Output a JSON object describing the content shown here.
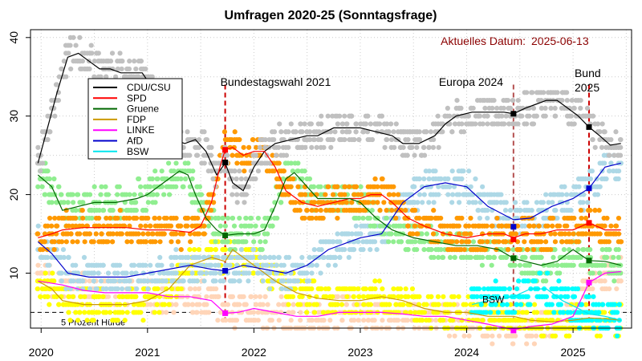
{
  "chart_data": {
    "type": "line",
    "title": "Umfragen 2020-25 (Sonntagsfrage)",
    "current_date_label": "Aktuelles Datum:",
    "current_date_value": "2025-06-13",
    "xlim": [
      2019.9,
      2025.55
    ],
    "ylim": [
      3,
      41
    ],
    "x_ticks": [
      2020,
      2021,
      2022,
      2023,
      2024,
      2025
    ],
    "x_tick_labels": [
      "2020",
      "2021",
      "2022",
      "2023",
      "2024",
      "2025"
    ],
    "y_ticks": [
      10,
      20,
      30,
      40
    ],
    "y_tick_labels": [
      "10",
      "20",
      "30",
      "40"
    ],
    "grid": true,
    "legend_position": "top-left",
    "threshold": {
      "y": 5,
      "label": "5 Prozent Hürde"
    },
    "events": [
      {
        "x": 2021.73,
        "label": "Bundestagswahl 2021",
        "color": "#cc0000",
        "lines": [
          "Bundestagswahl 2021"
        ]
      },
      {
        "x": 2024.44,
        "label": "Europa 2024",
        "color": "#b45050",
        "lines": [
          "Europa 2024"
        ]
      },
      {
        "x": 2025.15,
        "label": "Bund 2025",
        "color": "#cc0000",
        "lines": [
          "Bund",
          "2025"
        ]
      }
    ],
    "annotations": [
      {
        "x": 2024.25,
        "y": 6.2,
        "text": "BSW"
      }
    ],
    "series": [
      {
        "name": "CDU/CSU",
        "line_color": "#000000",
        "point_color": "#c0c0c0",
        "points": [
          [
            2019.97,
            24
          ],
          [
            2020.05,
            28
          ],
          [
            2020.15,
            33
          ],
          [
            2020.25,
            37.5
          ],
          [
            2020.35,
            38
          ],
          [
            2020.45,
            37
          ],
          [
            2020.55,
            36
          ],
          [
            2020.65,
            36
          ],
          [
            2020.75,
            35.5
          ],
          [
            2020.85,
            35.5
          ],
          [
            2020.95,
            35.5
          ],
          [
            2021.05,
            33.5
          ],
          [
            2021.15,
            30
          ],
          [
            2021.25,
            27
          ],
          [
            2021.35,
            26.5
          ],
          [
            2021.45,
            27
          ],
          [
            2021.55,
            25.5
          ],
          [
            2021.65,
            22.5
          ],
          [
            2021.73,
            24
          ],
          [
            2021.8,
            21.5
          ],
          [
            2021.9,
            20.5
          ],
          [
            2022.0,
            23.5
          ],
          [
            2022.1,
            25.5
          ],
          [
            2022.2,
            26.5
          ],
          [
            2022.35,
            27
          ],
          [
            2022.5,
            27.5
          ],
          [
            2022.6,
            27.5
          ],
          [
            2022.75,
            28.5
          ],
          [
            2022.9,
            28.5
          ],
          [
            2023.0,
            28.5
          ],
          [
            2023.15,
            28
          ],
          [
            2023.3,
            27.5
          ],
          [
            2023.4,
            26.5
          ],
          [
            2023.55,
            26.5
          ],
          [
            2023.7,
            27.5
          ],
          [
            2023.8,
            29
          ],
          [
            2023.9,
            30
          ],
          [
            2024.05,
            30.5
          ],
          [
            2024.2,
            30.5
          ],
          [
            2024.35,
            30.5
          ],
          [
            2024.44,
            30.3
          ],
          [
            2024.55,
            31
          ],
          [
            2024.65,
            31.5
          ],
          [
            2024.75,
            32
          ],
          [
            2024.85,
            32
          ],
          [
            2024.95,
            31
          ],
          [
            2025.05,
            30
          ],
          [
            2025.15,
            28.6
          ],
          [
            2025.25,
            27.5
          ],
          [
            2025.35,
            26.3
          ],
          [
            2025.45,
            26.5
          ]
        ],
        "markers": [
          [
            2021.73,
            24.1
          ],
          [
            2024.44,
            30.3
          ],
          [
            2025.15,
            28.6
          ]
        ]
      },
      {
        "name": "SPD",
        "line_color": "#ff0000",
        "point_color": "#ff9900",
        "points": [
          [
            2019.97,
            14.5
          ],
          [
            2020.1,
            15
          ],
          [
            2020.2,
            15.5
          ],
          [
            2020.4,
            15.8
          ],
          [
            2020.6,
            15.8
          ],
          [
            2020.8,
            15.8
          ],
          [
            2021.0,
            15.5
          ],
          [
            2021.2,
            15.5
          ],
          [
            2021.4,
            15.2
          ],
          [
            2021.5,
            16
          ],
          [
            2021.6,
            19
          ],
          [
            2021.68,
            23.5
          ],
          [
            2021.73,
            25.7
          ],
          [
            2021.8,
            26
          ],
          [
            2021.9,
            25
          ],
          [
            2022.0,
            25.5
          ],
          [
            2022.1,
            25.5
          ],
          [
            2022.2,
            23.5
          ],
          [
            2022.3,
            20.5
          ],
          [
            2022.45,
            19
          ],
          [
            2022.6,
            18.5
          ],
          [
            2022.75,
            19
          ],
          [
            2022.9,
            19.5
          ],
          [
            2023.0,
            19.5
          ],
          [
            2023.1,
            20
          ],
          [
            2023.2,
            20
          ],
          [
            2023.3,
            19
          ],
          [
            2023.45,
            17
          ],
          [
            2023.6,
            16
          ],
          [
            2023.8,
            15
          ],
          [
            2024.0,
            14.5
          ],
          [
            2024.2,
            15
          ],
          [
            2024.35,
            15
          ],
          [
            2024.44,
            14.5
          ],
          [
            2024.55,
            15
          ],
          [
            2024.7,
            15
          ],
          [
            2024.85,
            15.5
          ],
          [
            2025.0,
            15.5
          ],
          [
            2025.15,
            16.4
          ],
          [
            2025.3,
            15.5
          ],
          [
            2025.45,
            15.5
          ]
        ],
        "markers": [
          [
            2021.73,
            25.7
          ],
          [
            2024.44,
            14.3
          ],
          [
            2025.15,
            16.4
          ]
        ]
      },
      {
        "name": "Gruene",
        "line_color": "#006600",
        "point_color": "#90ee90",
        "points": [
          [
            2019.97,
            22.5
          ],
          [
            2020.1,
            21
          ],
          [
            2020.2,
            18
          ],
          [
            2020.35,
            18.5
          ],
          [
            2020.5,
            19
          ],
          [
            2020.7,
            19
          ],
          [
            2020.9,
            19.5
          ],
          [
            2021.0,
            20
          ],
          [
            2021.15,
            21.5
          ],
          [
            2021.3,
            23
          ],
          [
            2021.38,
            22.5
          ],
          [
            2021.45,
            20
          ],
          [
            2021.55,
            17
          ],
          [
            2021.65,
            15.5
          ],
          [
            2021.73,
            14.8
          ],
          [
            2021.85,
            15
          ],
          [
            2022.0,
            15
          ],
          [
            2022.1,
            15.5
          ],
          [
            2022.2,
            18.5
          ],
          [
            2022.3,
            22
          ],
          [
            2022.38,
            22.8
          ],
          [
            2022.5,
            21
          ],
          [
            2022.6,
            19.5
          ],
          [
            2022.75,
            19.5
          ],
          [
            2022.9,
            19.5
          ],
          [
            2023.0,
            19
          ],
          [
            2023.15,
            17
          ],
          [
            2023.3,
            15.5
          ],
          [
            2023.5,
            14.5
          ],
          [
            2023.7,
            14
          ],
          [
            2023.9,
            13.5
          ],
          [
            2024.1,
            13.5
          ],
          [
            2024.3,
            13
          ],
          [
            2024.44,
            11.9
          ],
          [
            2024.55,
            11.5
          ],
          [
            2024.7,
            11
          ],
          [
            2024.85,
            11.5
          ],
          [
            2025.0,
            13
          ],
          [
            2025.15,
            11.6
          ],
          [
            2025.3,
            11.5
          ],
          [
            2025.45,
            11
          ]
        ],
        "markers": [
          [
            2021.73,
            14.8
          ],
          [
            2024.44,
            11.9
          ],
          [
            2025.15,
            11.6
          ]
        ]
      },
      {
        "name": "FDP",
        "line_color": "#cc9900",
        "point_color": "#ffff00",
        "points": [
          [
            2019.97,
            9
          ],
          [
            2020.1,
            8
          ],
          [
            2020.2,
            6.5
          ],
          [
            2020.4,
            6
          ],
          [
            2020.6,
            6
          ],
          [
            2020.8,
            6
          ],
          [
            2021.0,
            6.5
          ],
          [
            2021.2,
            8
          ],
          [
            2021.4,
            11
          ],
          [
            2021.6,
            12
          ],
          [
            2021.73,
            11.5
          ],
          [
            2021.8,
            13
          ],
          [
            2022.0,
            11
          ],
          [
            2022.2,
            9
          ],
          [
            2022.4,
            7.5
          ],
          [
            2022.6,
            6.8
          ],
          [
            2022.8,
            6.5
          ],
          [
            2023.0,
            6.5
          ],
          [
            2023.2,
            7
          ],
          [
            2023.4,
            6.5
          ],
          [
            2023.6,
            5.5
          ],
          [
            2023.8,
            5
          ],
          [
            2024.0,
            5
          ],
          [
            2024.2,
            4.5
          ],
          [
            2024.44,
            4.5
          ],
          [
            2024.6,
            4
          ],
          [
            2024.8,
            3.8
          ],
          [
            2025.0,
            4
          ],
          [
            2025.15,
            4.3
          ],
          [
            2025.3,
            4.2
          ],
          [
            2025.45,
            4
          ]
        ]
      },
      {
        "name": "LINKE",
        "line_color": "#ff00ff",
        "point_color": "#ffd5b8",
        "points": [
          [
            2019.97,
            9
          ],
          [
            2020.2,
            8.5
          ],
          [
            2020.4,
            7.8
          ],
          [
            2020.6,
            7.5
          ],
          [
            2020.8,
            7.5
          ],
          [
            2021.0,
            7.5
          ],
          [
            2021.2,
            7
          ],
          [
            2021.4,
            7
          ],
          [
            2021.6,
            6.5
          ],
          [
            2021.73,
            4.9
          ],
          [
            2021.85,
            5
          ],
          [
            2022.0,
            5.5
          ],
          [
            2022.2,
            5
          ],
          [
            2022.4,
            4.5
          ],
          [
            2022.6,
            4.5
          ],
          [
            2022.8,
            5
          ],
          [
            2023.0,
            5
          ],
          [
            2023.2,
            5
          ],
          [
            2023.4,
            4.8
          ],
          [
            2023.6,
            4.5
          ],
          [
            2023.8,
            4.5
          ],
          [
            2024.0,
            4
          ],
          [
            2024.2,
            3.5
          ],
          [
            2024.44,
            2.8
          ],
          [
            2024.6,
            3.2
          ],
          [
            2024.8,
            3.5
          ],
          [
            2025.0,
            4.5
          ],
          [
            2025.15,
            8.8
          ],
          [
            2025.3,
            10
          ],
          [
            2025.45,
            10.2
          ]
        ],
        "markers": [
          [
            2021.73,
            4.9
          ],
          [
            2024.44,
            2.7
          ],
          [
            2025.15,
            8.8
          ]
        ]
      },
      {
        "name": "AfD",
        "line_color": "#0000cc",
        "point_color": "#add8e6",
        "points": [
          [
            2019.97,
            14
          ],
          [
            2020.1,
            12.5
          ],
          [
            2020.25,
            10
          ],
          [
            2020.45,
            9.5
          ],
          [
            2020.6,
            9.5
          ],
          [
            2020.8,
            9.5
          ],
          [
            2021.0,
            10
          ],
          [
            2021.2,
            10.5
          ],
          [
            2021.4,
            11
          ],
          [
            2021.6,
            10.5
          ],
          [
            2021.73,
            10.3
          ],
          [
            2021.9,
            11
          ],
          [
            2022.1,
            10.5
          ],
          [
            2022.3,
            10
          ],
          [
            2022.5,
            11
          ],
          [
            2022.7,
            13
          ],
          [
            2022.9,
            14
          ],
          [
            2023.0,
            14.5
          ],
          [
            2023.2,
            15
          ],
          [
            2023.4,
            19
          ],
          [
            2023.6,
            21
          ],
          [
            2023.8,
            21.5
          ],
          [
            2024.0,
            21
          ],
          [
            2024.2,
            18.5
          ],
          [
            2024.44,
            16.8
          ],
          [
            2024.6,
            17
          ],
          [
            2024.8,
            18.5
          ],
          [
            2025.0,
            19.5
          ],
          [
            2025.15,
            20.8
          ],
          [
            2025.3,
            23.5
          ],
          [
            2025.45,
            24
          ]
        ],
        "markers": [
          [
            2021.73,
            10.3
          ],
          [
            2024.44,
            15.9
          ],
          [
            2025.15,
            20.8
          ]
        ]
      },
      {
        "name": "BSW",
        "line_color": "#00e5ee",
        "point_color": "#00ffff",
        "points": [
          [
            2024.05,
            6
          ],
          [
            2024.2,
            6.5
          ],
          [
            2024.44,
            7
          ],
          [
            2024.6,
            8
          ],
          [
            2024.75,
            8
          ],
          [
            2024.9,
            6.5
          ],
          [
            2025.05,
            5.5
          ],
          [
            2025.15,
            4.8
          ],
          [
            2025.3,
            4.5
          ],
          [
            2025.45,
            4
          ]
        ]
      }
    ]
  }
}
